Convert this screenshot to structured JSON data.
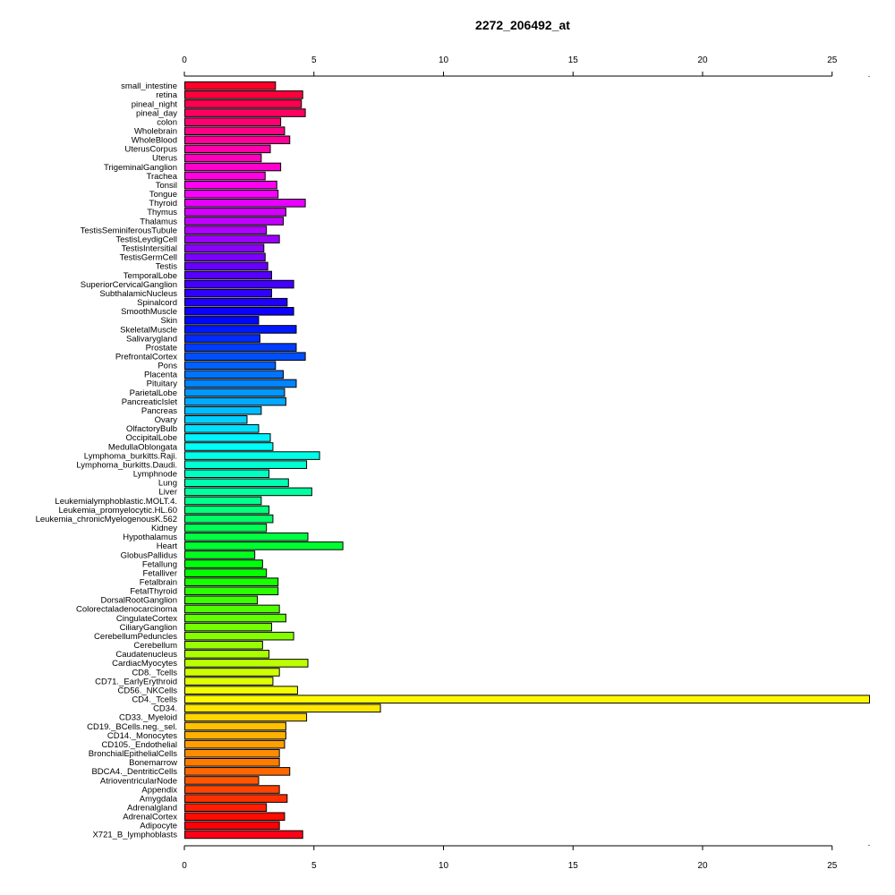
{
  "chart_data": {
    "type": "bar",
    "orientation": "horizontal",
    "title": "2272_206492_at",
    "xlabel": "",
    "ylabel": "",
    "xlim": [
      0,
      26.5
    ],
    "x_ticks": [
      0,
      5,
      10,
      15,
      20,
      25
    ],
    "x_tick_labels": [
      "0",
      "5",
      "10",
      "15",
      "20",
      "25"
    ],
    "axis_positions": [
      "top",
      "bottom"
    ],
    "grid": false,
    "legend": "none",
    "bar_border_color": "#000000",
    "color_scheme": "rainbow (red → magenta → blue → cyan → green → yellow → orange → red), top to bottom",
    "categories": [
      "small_intestine",
      "retina",
      "pineal_night",
      "pineal_day",
      "colon",
      "Wholebrain",
      "WholeBlood",
      "UterusCorpus",
      "Uterus",
      "TrigeminalGanglion",
      "Trachea",
      "Tonsil",
      "Tongue",
      "Thyroid",
      "Thymus",
      "Thalamus",
      "TestisSeminiferousTubule",
      "TestisLeydigCell",
      "TestisIntersitial",
      "TestisGermCell",
      "Testis",
      "TemporalLobe",
      "SuperiorCervicalGanglion",
      "SubthalamicNucleus",
      "Spinalcord",
      "SmoothMuscle",
      "Skin",
      "SkeletalMuscle",
      "Salivarygland",
      "Prostate",
      "PrefrontalCortex",
      "Pons",
      "Placenta",
      "Pituitary",
      "ParietalLobe",
      "PancreaticIslet",
      "Pancreas",
      "Ovary",
      "OlfactoryBulb",
      "OccipitalLobe",
      "MedullaOblongata",
      "Lymphoma_burkitts.Raji.",
      "Lymphoma_burkitts.Daudi.",
      "Lymphnode",
      "Lung",
      "Liver",
      "Leukemialymphoblastic.MOLT.4.",
      "Leukemia_promyelocytic.HL.60",
      "Leukemia_chronicMyelogenousK.562",
      "Kidney",
      "Hypothalamus",
      "Heart",
      "GlobusPallidus",
      "Fetallung",
      "Fetalliver",
      "Fetalbrain",
      "FetalThyroid",
      "DorsalRootGanglion",
      "Colorectaladenocarcinoma",
      "CingulateCortex",
      "CiliaryGanglion",
      "CerebellumPeduncles",
      "Cerebellum",
      "Caudatenucleus",
      "CardiacMyocytes",
      "CD8._Tcells",
      "CD71._EarlyErythroid",
      "CD56._NKCells",
      "CD4._Tcells",
      "CD34.",
      "CD33._Myeloid",
      "CD19._BCells.neg._sel.",
      "CD14._Monocytes",
      "CD105._Endothelial",
      "BronchialEpithelialCells",
      "Bonemarrow",
      "BDCA4._DentriticCells",
      "AtrioventricularNode",
      "Appendix",
      "Amygdala",
      "Adrenalgland",
      "AdrenalCortex",
      "Adipocyte",
      "X721_B_lymphoblasts"
    ],
    "values": [
      3.5,
      4.55,
      4.5,
      4.65,
      3.7,
      3.85,
      4.05,
      3.3,
      2.95,
      3.7,
      3.1,
      3.55,
      3.6,
      4.65,
      3.9,
      3.8,
      3.15,
      3.65,
      3.05,
      3.1,
      3.2,
      3.35,
      4.2,
      3.35,
      3.95,
      4.2,
      2.85,
      4.3,
      2.9,
      4.3,
      4.65,
      3.5,
      3.8,
      4.3,
      3.85,
      3.9,
      2.95,
      2.4,
      2.85,
      3.3,
      3.4,
      5.2,
      4.7,
      3.25,
      4.0,
      4.9,
      2.95,
      3.25,
      3.4,
      3.15,
      4.75,
      6.1,
      2.7,
      3.0,
      3.15,
      3.6,
      3.6,
      2.8,
      3.65,
      3.9,
      3.35,
      4.2,
      3.0,
      3.25,
      4.75,
      3.65,
      3.4,
      4.35,
      26.5,
      7.55,
      4.7,
      3.9,
      3.9,
      3.85,
      3.65,
      3.65,
      4.05,
      2.85,
      3.65,
      3.95,
      3.15,
      3.85,
      3.65,
      4.55
    ]
  }
}
